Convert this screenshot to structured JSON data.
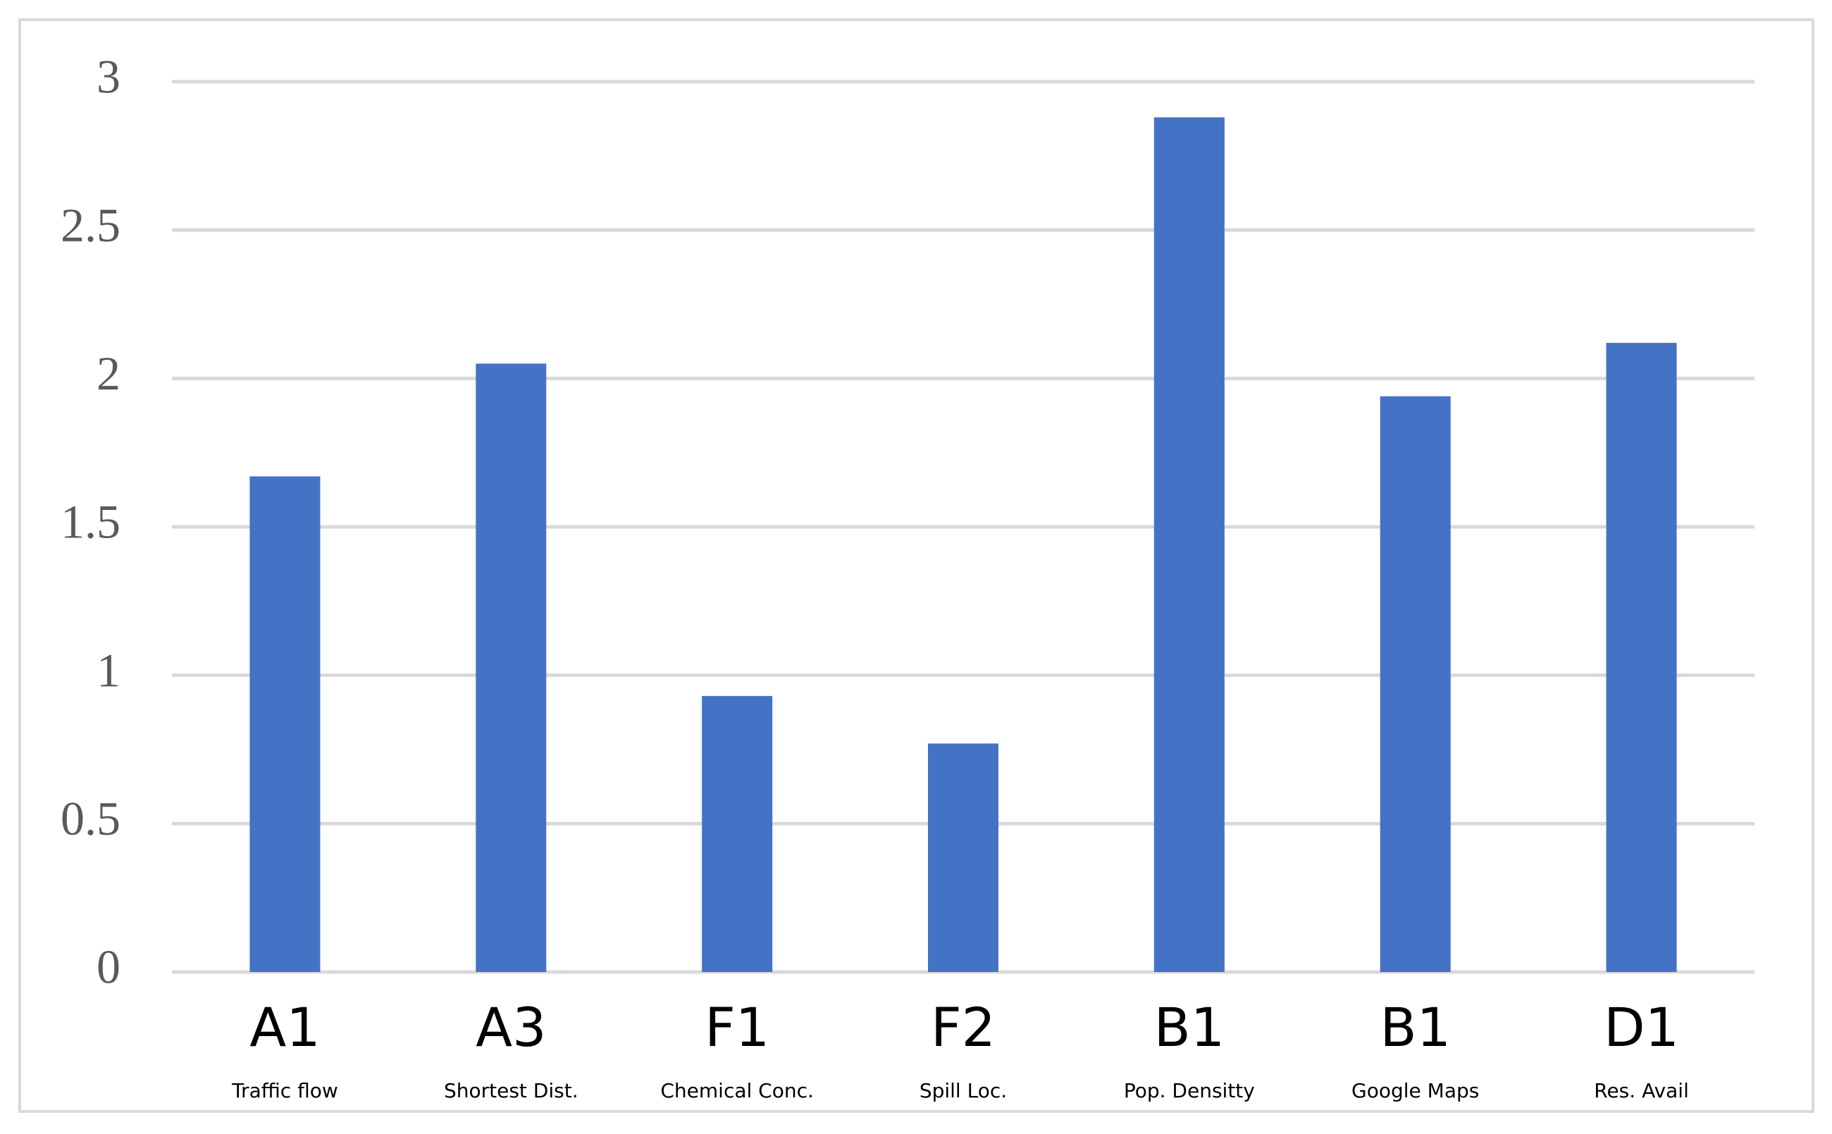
{
  "chart_data": {
    "type": "bar",
    "categories": [
      "A1",
      "A3",
      "F1",
      "F2",
      "B1",
      "B1",
      "D1"
    ],
    "category_descriptions": [
      "Traffic flow",
      "Shortest Dist.",
      "Chemical Conc.",
      "Spill Loc.",
      "Pop. Densitty",
      "Google Maps",
      "Res. Avail"
    ],
    "values": [
      1.67,
      2.05,
      0.93,
      0.77,
      2.88,
      1.94,
      2.12
    ],
    "color": "#4472c4",
    "ylim": [
      0,
      3
    ],
    "yticks": [
      0,
      0.5,
      1,
      1.5,
      2,
      2.5,
      3
    ],
    "grid": true
  }
}
